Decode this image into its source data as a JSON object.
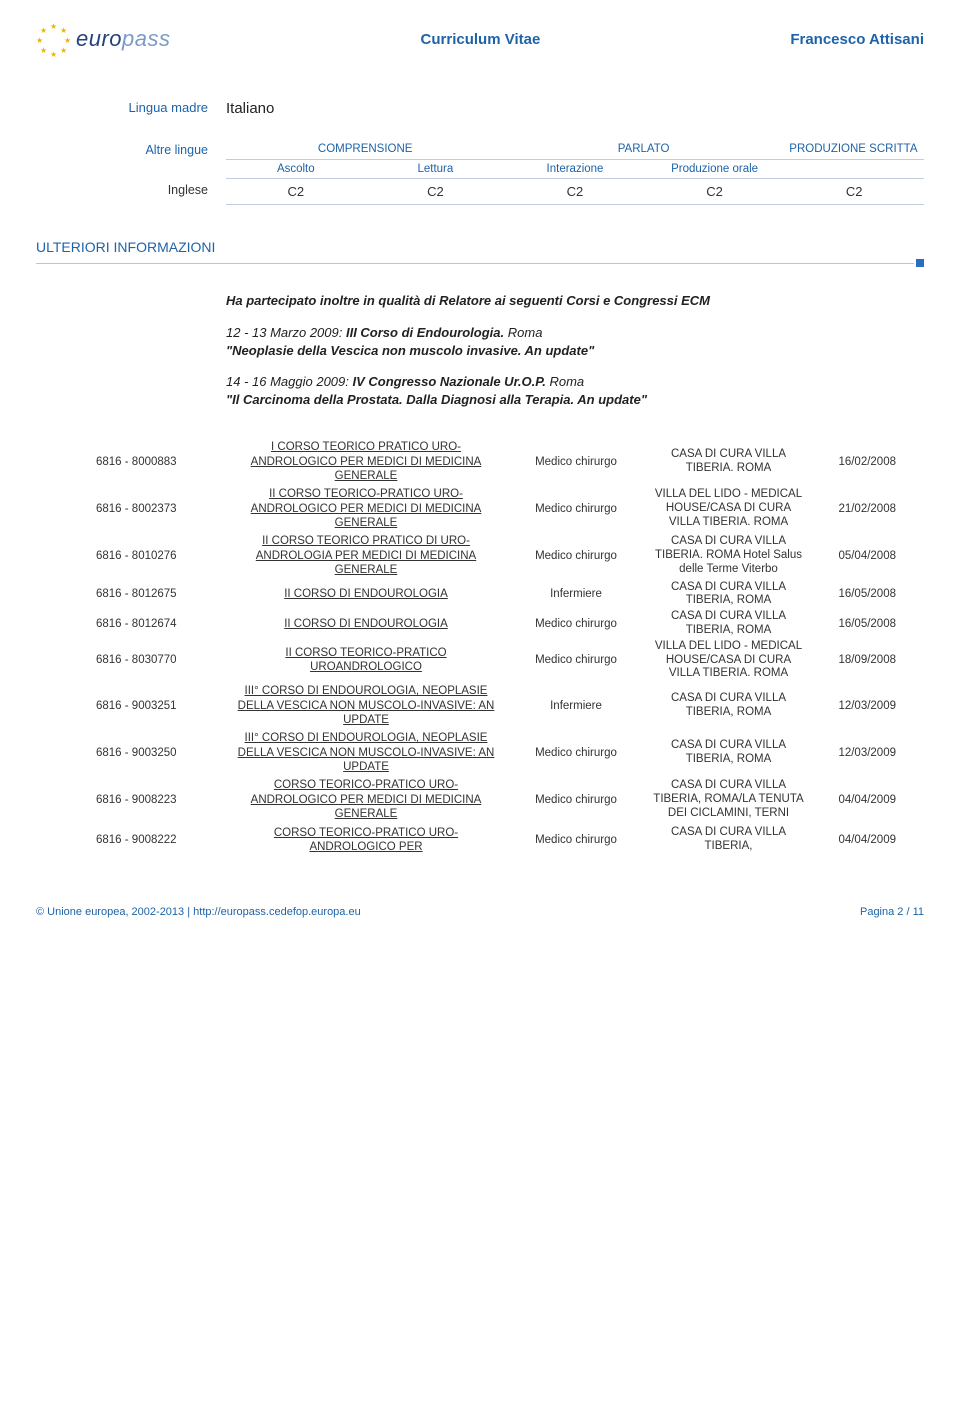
{
  "header": {
    "logo_euro": "euro",
    "logo_pass": "pass",
    "doc_title": "Curriculum Vitae",
    "person_name": "Francesco Attisani"
  },
  "mother_tongue": {
    "label": "Lingua madre",
    "value": "Italiano"
  },
  "other_lang": {
    "label": "Altre lingue",
    "head_compr": "COMPRENSIONE",
    "head_parl": "PARLATO",
    "head_prod": "PRODUZIONE SCRITTA",
    "sub_ascolto": "Ascolto",
    "sub_lettura": "Lettura",
    "sub_interaz": "Interazione",
    "sub_prod_orale": "Produzione orale",
    "lang_name": "Inglese",
    "vals": [
      "C2",
      "C2",
      "C2",
      "C2",
      "C2"
    ]
  },
  "info_section": {
    "title": "ULTERIORI INFORMAZIONI",
    "intro": "Ha partecipato inoltre in qualità di Relatore ai seguenti Corsi  e  Congressi ECM",
    "events": [
      {
        "date": "12 - 13 Marzo 2009: ",
        "title": "III Corso di Endourologia.",
        "city": "    Roma",
        "line2": "\"Neoplasie della Vescica non muscolo invasive. An update\""
      },
      {
        "date": "14 - 16 Maggio 2009: ",
        "title": "IV Congresso Nazionale Ur.O.P.",
        "city": "     Roma",
        "line2": "\"Il Carcinoma della Prostata. Dalla Diagnosi alla Terapia. An update\""
      }
    ]
  },
  "courses": [
    {
      "id": "6816 - 8000883",
      "title": "I CORSO TEORICO PRATICO URO-ANDROLOGICO PER MEDICI DI MEDICINA GENERALE",
      "role": "Medico chirurgo",
      "loc": "CASA DI CURA VILLA TIBERIA. ROMA",
      "date": "16/02/2008"
    },
    {
      "id": "6816 - 8002373",
      "title": "II CORSO TEORICO-PRATICO URO-ANDROLOGICO PER MEDICI DI MEDICINA GENERALE",
      "role": "Medico chirurgo",
      "loc": "VILLA DEL LIDO - MEDICAL HOUSE/CASA DI CURA VILLA TIBERIA. ROMA",
      "date": "21/02/2008"
    },
    {
      "id": "6816 - 8010276",
      "title": "II CORSO TEORICO PRATICO DI URO-ANDROLOGIA PER MEDICI DI MEDICINA GENERALE",
      "role": "Medico chirurgo",
      "loc": "CASA DI CURA VILLA TIBERIA. ROMA Hotel Salus delle Terme Viterbo",
      "date": "05/04/2008"
    },
    {
      "id": "6816 - 8012675",
      "title": "II CORSO DI ENDOUROLOGIA",
      "role": "Infermiere",
      "loc": "CASA DI CURA VILLA TIBERIA, ROMA",
      "date": "16/05/2008"
    },
    {
      "id": "6816 - 8012674",
      "title": "II CORSO DI ENDOUROLOGIA",
      "role": "Medico chirurgo",
      "loc": "CASA DI CURA VILLA TIBERIA, ROMA",
      "date": "16/05/2008"
    },
    {
      "id": "6816 - 8030770",
      "title": "II CORSO TEORICO-PRATICO UROANDROLOGICO",
      "role": "Medico chirurgo",
      "loc": "VILLA DEL LIDO - MEDICAL HOUSE/CASA DI CURA VILLA TIBERIA. ROMA",
      "date": "18/09/2008"
    },
    {
      "id": "6816 - 9003251",
      "title": "III° CORSO DI ENDOUROLOGIA, NEOPLASIE DELLA VESCICA NON MUSCOLO-INVASIVE: AN UPDATE",
      "role": "Infermiere",
      "loc": "CASA DI CURA VILLA TIBERIA, ROMA",
      "date": "12/03/2009"
    },
    {
      "id": "6816 - 9003250",
      "title": "III° CORSO DI ENDOUROLOGIA, NEOPLASIE DELLA VESCICA NON MUSCOLO-INVASIVE: AN UPDATE",
      "role": "Medico chirurgo",
      "loc": "CASA DI CURA VILLA TIBERIA, ROMA",
      "date": "12/03/2009"
    },
    {
      "id": "6816 - 9008223",
      "title": "CORSO TEORICO-PRATICO URO-ANDROLOGICO PER MEDICI DI MEDICINA GENERALE",
      "role": "Medico chirurgo",
      "loc": "CASA DI CURA VILLA TIBERIA, ROMA/LA TENUTA DEI CICLAMINI, TERNI",
      "date": "04/04/2009"
    },
    {
      "id": "6816 - 9008222",
      "title": "CORSO TEORICO-PRATICO URO-ANDROLOGICO PER",
      "role": "Medico chirurgo",
      "loc": "CASA DI CURA VILLA TIBERIA,",
      "date": "04/04/2009"
    }
  ],
  "footer": {
    "left_pre": "© Unione europea, 2002-2013 | ",
    "left_link": "http://europass.cedefop.europa.eu",
    "right": "Pagina 2 / 11"
  },
  "styling": {
    "brand_color": "#1e63a8",
    "rule_color": "#b8c6db",
    "dot_color": "#2a6fbf",
    "text_color": "#333333",
    "bg_color": "#ffffff",
    "base_font_size_pt": 10,
    "header_font_size_pt": 12,
    "logo_euro_color": "#26417c",
    "logo_pass_color": "#7a9bc9",
    "star_color": "#f0b400"
  }
}
